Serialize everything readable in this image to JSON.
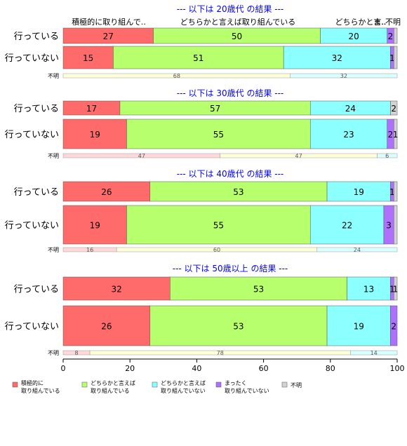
{
  "chart_data": {
    "type": "bar",
    "stacked": true,
    "orientation": "horizontal",
    "xlim": [
      0,
      100
    ],
    "xticks": [
      "0",
      "20",
      "40",
      "60",
      "80",
      "100"
    ],
    "categories_legend": [
      "積極的に\n取り組んでいる",
      "どちらかと言えば\n取り組んでいる",
      "どちらかと言えば\n取り組んでいない",
      "まったく\n取り組んでいない",
      "不明"
    ],
    "colors": [
      "#ff6b6b",
      "#b8ff6e",
      "#8cffff",
      "#b070ff",
      "#d3d3d3"
    ],
    "light_colors": [
      "#ffd9d9",
      "#ffffd9",
      "#d9ffff",
      "#e6d9ff",
      "#eeeeee"
    ],
    "column_headers": [
      "積極的に取り組んで..",
      "どちらかと言えば取り組んでいる",
      "どちらかと言..",
      "ま..",
      "不明"
    ],
    "panels": [
      {
        "title": "--- 以下は 20歳代 の結果 ---",
        "rows": [
          {
            "label": "行っている",
            "values": [
              27,
              50,
              20,
              2,
              1
            ],
            "labels": [
              "27",
              "50",
              "20",
              "2",
              ""
            ]
          },
          {
            "label": "行っていない",
            "values": [
              15,
              51,
              32,
              1,
              1
            ],
            "labels": [
              "15",
              "51",
              "32",
              "1",
              ""
            ]
          }
        ],
        "unknown": {
          "label": "不明",
          "values": [
            0,
            68,
            32,
            0,
            0
          ],
          "labels": [
            "",
            "68",
            "32",
            "",
            ""
          ]
        }
      },
      {
        "title": "--- 以下は 30歳代 の結果 ---",
        "rows": [
          {
            "label": "行っている",
            "values": [
              17,
              57,
              24,
              0,
              2
            ],
            "labels": [
              "17",
              "57",
              "24",
              "",
              "2"
            ]
          },
          {
            "label": "行っていない",
            "values": [
              19,
              55,
              23,
              2,
              1
            ],
            "labels": [
              "19",
              "55",
              "23",
              "2",
              "1"
            ]
          }
        ],
        "unknown": {
          "label": "不明",
          "values": [
            47,
            47,
            6,
            0,
            0
          ],
          "labels": [
            "47",
            "47",
            "6",
            "",
            ""
          ]
        }
      },
      {
        "title": "--- 以下は 40歳代 の結果 ---",
        "rows": [
          {
            "label": "行っている",
            "values": [
              26,
              53,
              19,
              1,
              1
            ],
            "labels": [
              "26",
              "53",
              "19",
              "1",
              ""
            ]
          },
          {
            "label": "行っていない",
            "values": [
              19,
              55,
              22,
              3,
              1
            ],
            "labels": [
              "19",
              "55",
              "22",
              "3",
              ""
            ]
          }
        ],
        "unknown": {
          "label": "不明",
          "values": [
            16,
            60,
            24,
            0,
            0
          ],
          "labels": [
            "16",
            "60",
            "24",
            "",
            ""
          ]
        }
      },
      {
        "title": "--- 以下は 50歳以上 の結果 ---",
        "rows": [
          {
            "label": "行っている",
            "values": [
              32,
              53,
              13,
              1,
              1
            ],
            "labels": [
              "32",
              "53",
              "13",
              "1",
              "1"
            ]
          },
          {
            "label": "行っていない",
            "values": [
              26,
              53,
              19,
              2,
              0
            ],
            "labels": [
              "26",
              "53",
              "19",
              "2",
              ""
            ]
          }
        ],
        "unknown": {
          "label": "不明",
          "values": [
            8,
            78,
            14,
            0,
            0
          ],
          "labels": [
            "8",
            "78",
            "14",
            "",
            ""
          ]
        }
      }
    ]
  }
}
